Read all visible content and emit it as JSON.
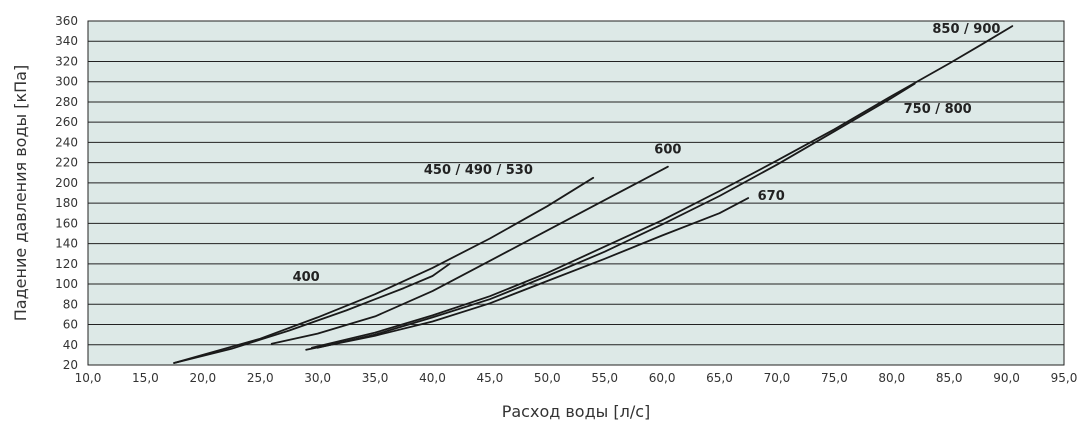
{
  "chart_data": {
    "type": "line",
    "xlabel": "Расход воды [л/с]",
    "ylabel": "Падение давления воды [кПа]",
    "xlim": [
      10,
      95
    ],
    "ylim": [
      20,
      360
    ],
    "x_ticks": [
      "10,0",
      "15,0",
      "20,0",
      "25,0",
      "30,0",
      "35,0",
      "40,0",
      "45,0",
      "50,0",
      "55,0",
      "60,0",
      "65,0",
      "70,0",
      "75,0",
      "80,0",
      "85,0",
      "90,0",
      "95,0"
    ],
    "y_ticks": [
      "20",
      "40",
      "60",
      "80",
      "100",
      "120",
      "140",
      "160",
      "180",
      "200",
      "220",
      "240",
      "260",
      "280",
      "300",
      "320",
      "340",
      "360"
    ],
    "grid": true,
    "colors": {
      "plot_background": "#dde9e7",
      "grid": "#222222",
      "line": "#1a1a1a"
    },
    "series": [
      {
        "name": "400",
        "label_at": [
          29,
          103
        ],
        "points": [
          [
            17.5,
            22
          ],
          [
            20,
            29
          ],
          [
            22.5,
            36
          ],
          [
            25,
            45
          ],
          [
            27.5,
            54
          ],
          [
            30,
            64
          ],
          [
            32.5,
            74
          ],
          [
            35,
            85
          ],
          [
            37.5,
            96
          ],
          [
            40,
            108
          ],
          [
            41.5,
            120
          ]
        ]
      },
      {
        "name": "450 / 490 / 530",
        "label_at": [
          44,
          209
        ],
        "points": [
          [
            17.5,
            22
          ],
          [
            20,
            30
          ],
          [
            25,
            46
          ],
          [
            30,
            67
          ],
          [
            35,
            90
          ],
          [
            40,
            116
          ],
          [
            45,
            145
          ],
          [
            50,
            177
          ],
          [
            54,
            205
          ]
        ]
      },
      {
        "name": "600",
        "label_at": [
          60.5,
          229
        ],
        "points": [
          [
            26,
            41
          ],
          [
            30,
            51
          ],
          [
            35,
            68
          ],
          [
            40,
            93
          ],
          [
            45,
            123
          ],
          [
            50,
            153
          ],
          [
            55,
            183
          ],
          [
            60.5,
            216
          ]
        ]
      },
      {
        "name": "670",
        "label_at": [
          69.5,
          183
        ],
        "points": [
          [
            29,
            35
          ],
          [
            35,
            49
          ],
          [
            40,
            63
          ],
          [
            45,
            81
          ],
          [
            50,
            103
          ],
          [
            55,
            125
          ],
          [
            60,
            148
          ],
          [
            65,
            170
          ],
          [
            67.5,
            185
          ]
        ]
      },
      {
        "name": "750 / 800",
        "label_at": [
          84,
          269
        ],
        "points": [
          [
            30,
            37
          ],
          [
            35,
            50
          ],
          [
            40,
            67
          ],
          [
            45,
            85
          ],
          [
            50,
            108
          ],
          [
            55,
            132
          ],
          [
            60,
            159
          ],
          [
            65,
            187
          ],
          [
            70,
            218
          ],
          [
            75,
            251
          ],
          [
            80,
            284
          ],
          [
            82,
            298
          ]
        ]
      },
      {
        "name": "850 / 900",
        "label_at": [
          86.5,
          348
        ],
        "points": [
          [
            29.5,
            37
          ],
          [
            35,
            52
          ],
          [
            40,
            69
          ],
          [
            45,
            88
          ],
          [
            50,
            111
          ],
          [
            55,
            137
          ],
          [
            60,
            163
          ],
          [
            65,
            192
          ],
          [
            70,
            222
          ],
          [
            75,
            253
          ],
          [
            80,
            286
          ],
          [
            85,
            318
          ],
          [
            88,
            338
          ],
          [
            90.5,
            355
          ]
        ]
      }
    ]
  }
}
